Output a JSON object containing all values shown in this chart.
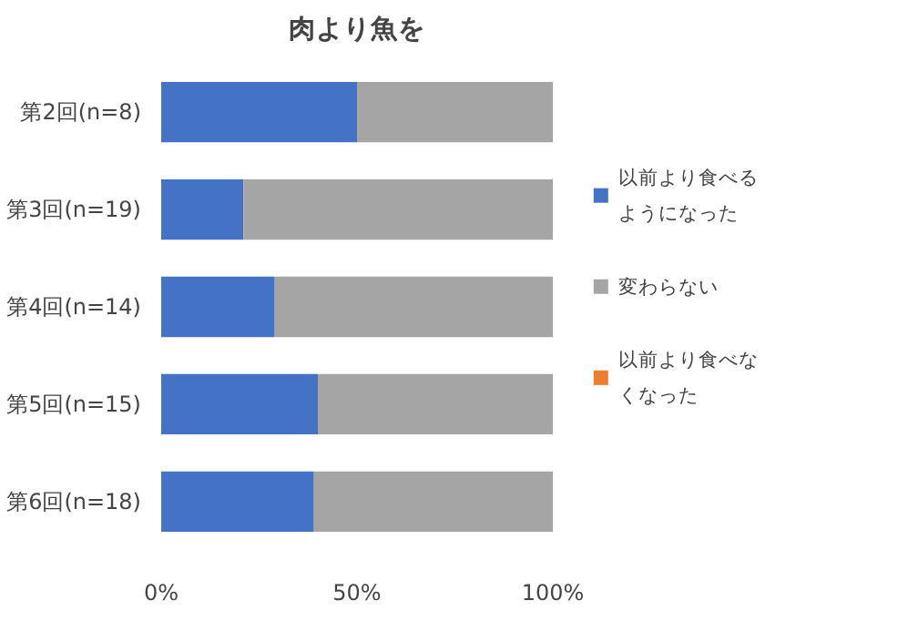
{
  "chart_data": {
    "type": "bar",
    "orientation": "horizontal",
    "stacked": true,
    "title": "肉より魚を",
    "categories": [
      "第2回(n=8)",
      "第3回(n=19)",
      "第4回(n=14)",
      "第5回(n=15)",
      "第6回(n=18)"
    ],
    "series": [
      {
        "name": "以前より食べるようになった",
        "color": "#4472c4",
        "values": [
          50,
          21,
          29,
          40,
          39
        ]
      },
      {
        "name": "変わらない",
        "color": "#a5a5a5",
        "values": [
          50,
          79,
          71,
          60,
          61
        ]
      },
      {
        "name": "以前より食べなくなった",
        "color": "#ed7d31",
        "values": [
          0,
          0,
          0,
          0,
          0
        ]
      }
    ],
    "xlim": [
      0,
      100
    ],
    "xticks": [
      {
        "value": 0,
        "label": "0%"
      },
      {
        "value": 50,
        "label": "50%"
      },
      {
        "value": 100,
        "label": "100%"
      }
    ],
    "grid": false,
    "legend": "right"
  }
}
